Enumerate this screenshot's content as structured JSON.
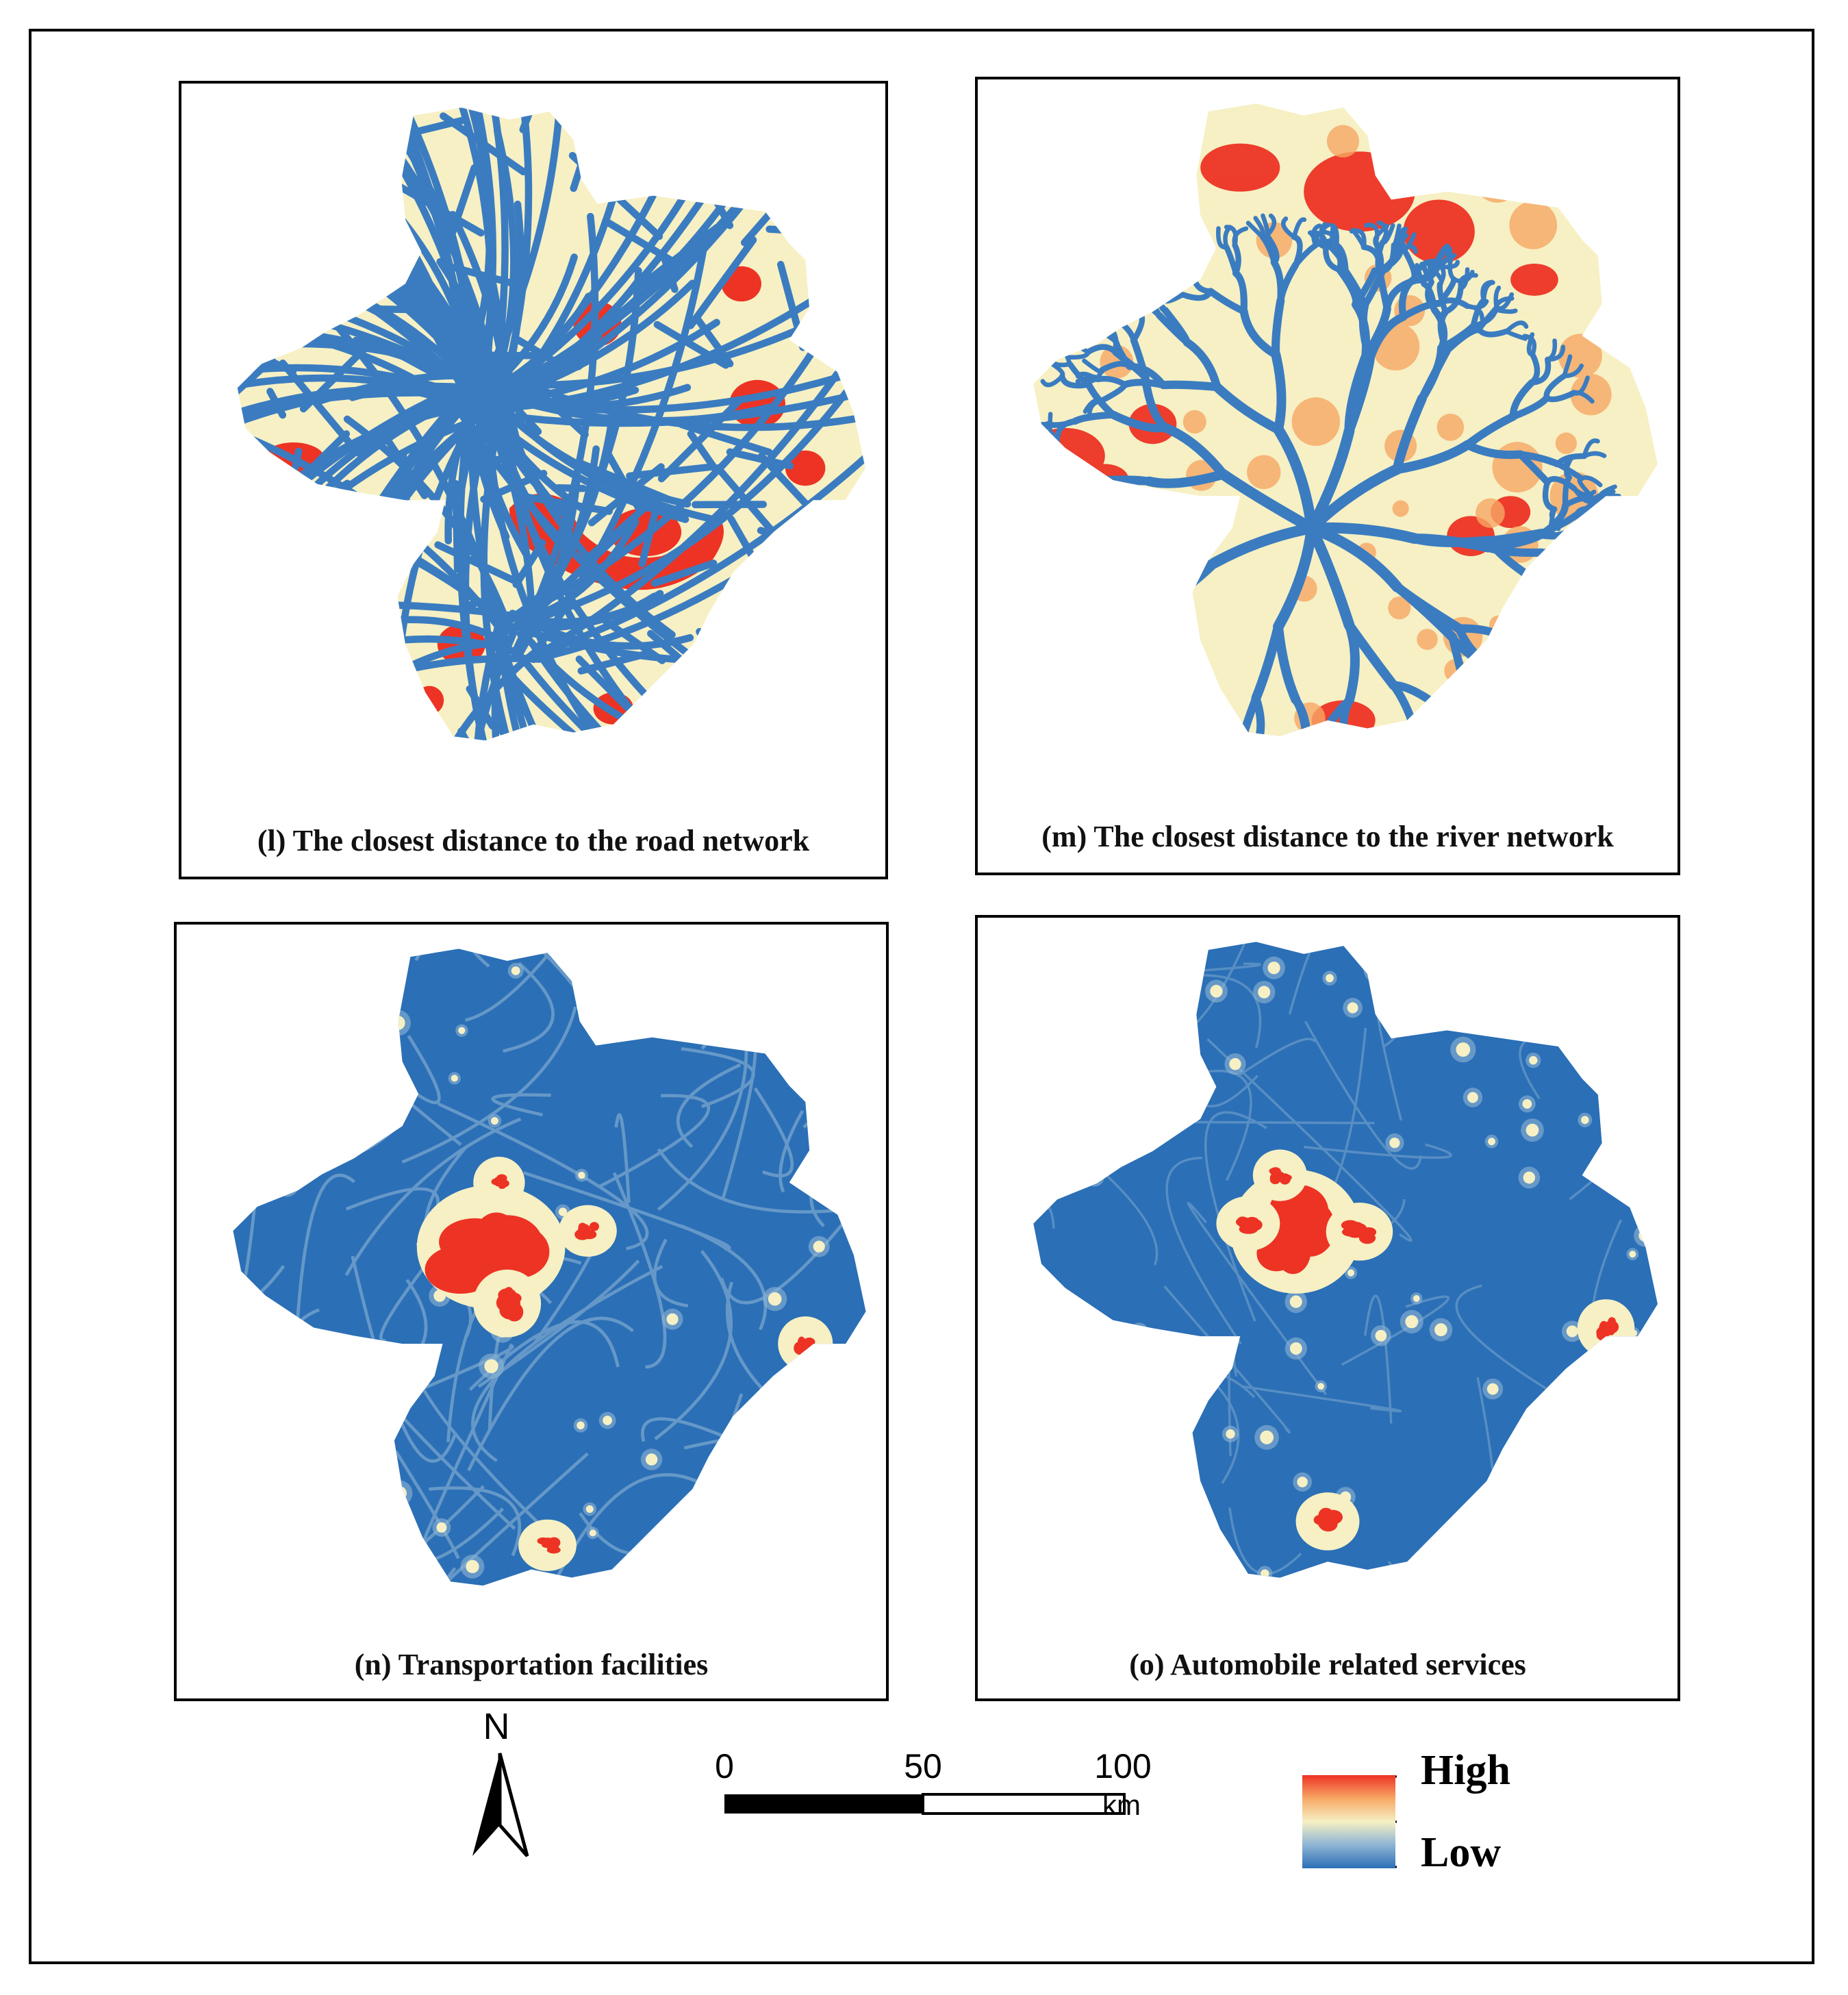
{
  "panels": {
    "l": {
      "caption": "(l) The closest distance to the road network"
    },
    "m": {
      "caption": "(m) The closest distance to the river network"
    },
    "n": {
      "caption": "(n) Transportation facilities"
    },
    "o": {
      "caption": "(o) Automobile related services"
    }
  },
  "north_arrow": {
    "label": "N"
  },
  "scale_bar": {
    "ticks": [
      "0",
      "50",
      "100"
    ],
    "unit": "km"
  },
  "legend": {
    "high": "High",
    "low": "Low"
  },
  "colors": {
    "low": "#2b6fb6",
    "mid": "#f6f0c4",
    "high": "#ed3324",
    "frame": "#000000"
  }
}
